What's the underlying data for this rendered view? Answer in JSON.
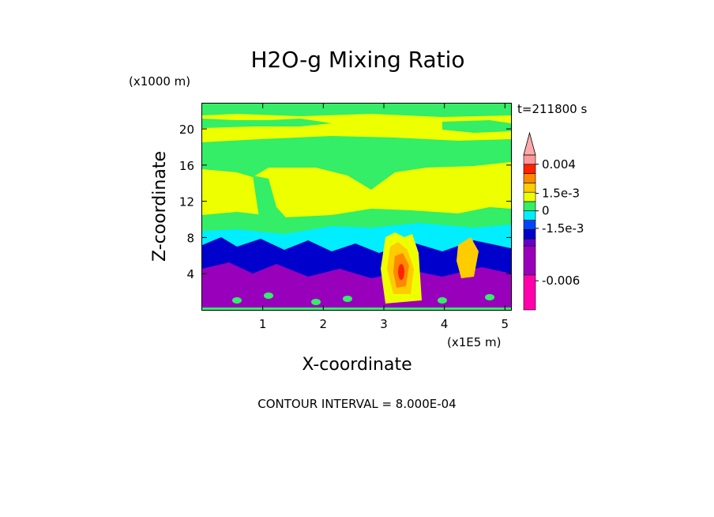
{
  "chart_data": {
    "type": "heatmap",
    "title": "H2O-g Mixing Ratio",
    "time_label": "t=211800 s",
    "xlabel": "X-coordinate",
    "ylabel": "Z-coordinate",
    "x_unit": "(x1E5 m)",
    "y_unit": "(x1000 m)",
    "xlim": [
      0,
      5.1
    ],
    "ylim": [
      0,
      22.8
    ],
    "x_ticks": [
      1,
      2,
      3,
      4,
      5
    ],
    "y_ticks": [
      4,
      8,
      12,
      16,
      20
    ],
    "x_tick_labels": [
      "1",
      "2",
      "3",
      "4",
      "5"
    ],
    "y_tick_labels": [
      "4",
      "8",
      "12",
      "16",
      "20"
    ],
    "contour_interval": "CONTOUR INTERVAL = 8.000E-04",
    "colorbar": {
      "labels": [
        {
          "text": "0.004",
          "value": 0.004
        },
        {
          "text": "1.5e-3",
          "value": 0.0015
        },
        {
          "text": "0",
          "value": 0
        },
        {
          "text": "-1.5e-3",
          "value": -0.0015
        },
        {
          "text": "-0.006",
          "value": -0.006
        }
      ],
      "levels": [
        {
          "low": -0.0085,
          "high": -0.0055,
          "color": "#ff00aa"
        },
        {
          "low": -0.0055,
          "high": -0.003,
          "color": "#9900bb"
        },
        {
          "low": -0.003,
          "high": -0.0024,
          "color": "#6600cc"
        },
        {
          "low": -0.0024,
          "high": -0.0016,
          "color": "#0000cc"
        },
        {
          "low": -0.0016,
          "high": -0.0008,
          "color": "#0044ff"
        },
        {
          "low": -0.0008,
          "high": 0.0,
          "color": "#00eeff"
        },
        {
          "low": 0.0,
          "high": 0.0008,
          "color": "#33ee66"
        },
        {
          "low": 0.0008,
          "high": 0.0016,
          "color": "#eeff00"
        },
        {
          "low": 0.0016,
          "high": 0.0024,
          "color": "#ffcc00"
        },
        {
          "low": 0.0024,
          "high": 0.0032,
          "color": "#ff8800"
        },
        {
          "low": 0.0032,
          "high": 0.004,
          "color": "#ff2200"
        },
        {
          "low": 0.004,
          "high": 0.0048,
          "color": "#ff9999"
        }
      ],
      "extend_color": "#ffaaaa"
    }
  }
}
